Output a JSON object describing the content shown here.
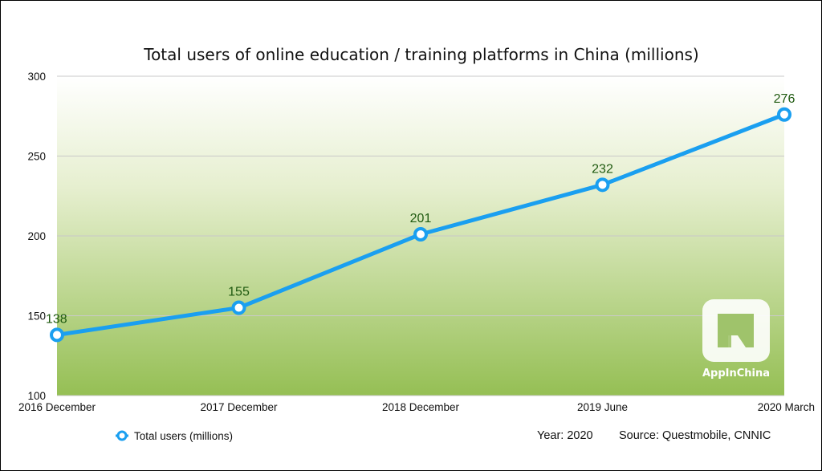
{
  "chart_data": {
    "type": "line",
    "title": "Total users of online education / training platforms in China (millions)",
    "categories": [
      "2016 December",
      "2017 December",
      "2018 December",
      "2019 June",
      "2020 March"
    ],
    "series": [
      {
        "name": "Total users (millions)",
        "values": [
          138,
          155,
          201,
          232,
          276
        ],
        "color": "#1a9ff0"
      }
    ],
    "ylim": [
      100,
      300
    ],
    "yticks": [
      100,
      150,
      200,
      250,
      300
    ],
    "grid": true,
    "legend": "bottom-left"
  },
  "footer": {
    "year": "Year: 2020",
    "source": "Source: Questmobile, CNNIC"
  },
  "watermark": {
    "text": "AppInChina"
  },
  "colors": {
    "line": "#1a9ff0",
    "data_label": "#1f5a10",
    "gradient_top": "#ffffff",
    "gradient_bottom": "#95bf54"
  }
}
